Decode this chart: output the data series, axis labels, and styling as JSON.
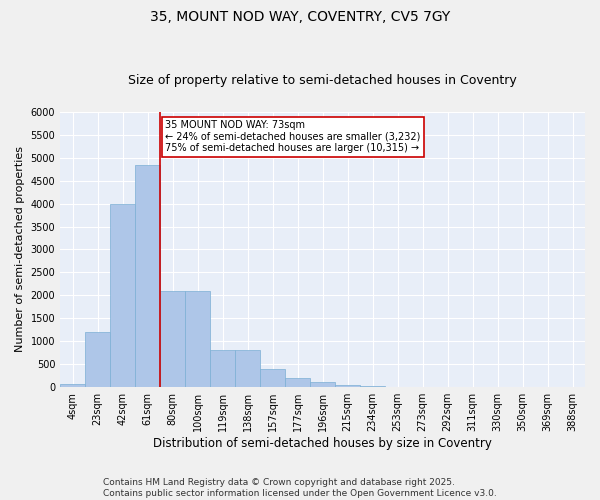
{
  "title_line1": "35, MOUNT NOD WAY, COVENTRY, CV5 7GY",
  "title_line2": "Size of property relative to semi-detached houses in Coventry",
  "xlabel": "Distribution of semi-detached houses by size in Coventry",
  "ylabel": "Number of semi-detached properties",
  "categories": [
    "4sqm",
    "23sqm",
    "42sqm",
    "61sqm",
    "80sqm",
    "100sqm",
    "119sqm",
    "138sqm",
    "157sqm",
    "177sqm",
    "196sqm",
    "215sqm",
    "234sqm",
    "253sqm",
    "273sqm",
    "292sqm",
    "311sqm",
    "330sqm",
    "350sqm",
    "369sqm",
    "388sqm"
  ],
  "values": [
    75,
    1200,
    4000,
    4850,
    2100,
    2100,
    800,
    800,
    390,
    200,
    105,
    55,
    30,
    10,
    5,
    2,
    1,
    0,
    0,
    0,
    0
  ],
  "bar_color": "#aec6e8",
  "bar_edgecolor": "#7bafd4",
  "property_line_label": "35 MOUNT NOD WAY: 73sqm",
  "pct_smaller": 24,
  "pct_larger": 75,
  "num_smaller": 3232,
  "num_larger": 10315,
  "annotation_box_color": "#ffffff",
  "annotation_box_edgecolor": "#cc0000",
  "vline_color": "#cc0000",
  "ylim": [
    0,
    6000
  ],
  "yticks": [
    0,
    500,
    1000,
    1500,
    2000,
    2500,
    3000,
    3500,
    4000,
    4500,
    5000,
    5500,
    6000
  ],
  "background_color": "#e8eef8",
  "grid_color": "#ffffff",
  "footer_line1": "Contains HM Land Registry data © Crown copyright and database right 2025.",
  "footer_line2": "Contains public sector information licensed under the Open Government Licence v3.0.",
  "title_fontsize": 10,
  "subtitle_fontsize": 9,
  "xlabel_fontsize": 8.5,
  "ylabel_fontsize": 8,
  "tick_fontsize": 7,
  "footer_fontsize": 6.5,
  "prop_line_bin": 3,
  "ann_text_fontsize": 7
}
